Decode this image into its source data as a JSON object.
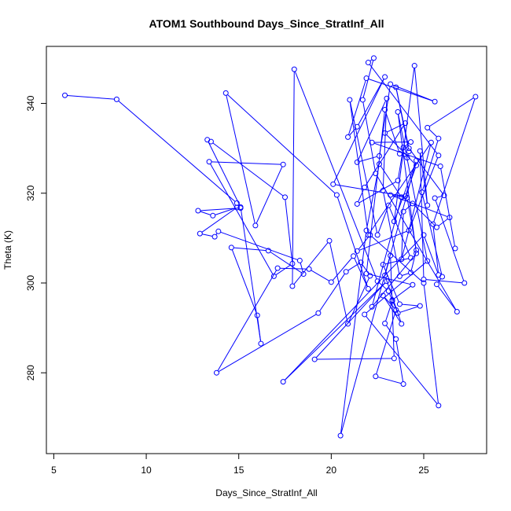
{
  "chart_data": {
    "type": "line",
    "title": "ATOM1 Southbound Days_Since_StratInf_All",
    "xlabel": "Days_Since_StratInf_All",
    "ylabel": "Theta (K)",
    "xlim": [
      4.6,
      28.4
    ],
    "ylim": [
      262.0,
      352.7
    ],
    "xticks": [
      5,
      10,
      15,
      20,
      25
    ],
    "yticks": [
      280,
      300,
      320,
      340
    ],
    "grid": false,
    "color": "#0000ff",
    "series": [
      {
        "points": [
          [
            5.6,
            341.8
          ],
          [
            8.4,
            340.9
          ],
          [
            14.9,
            317.8
          ],
          [
            15.1,
            316.7
          ],
          [
            12.8,
            316.1
          ],
          [
            13.6,
            315.0
          ],
          [
            14.9,
            316.8
          ],
          [
            12.9,
            311.0
          ],
          [
            13.7,
            310.3
          ],
          [
            13.9,
            311.5
          ],
          [
            18.3,
            305.0
          ],
          [
            18.5,
            302.0
          ],
          [
            16.6,
            307.2
          ],
          [
            14.6,
            307.9
          ],
          [
            16.0,
            292.8
          ],
          [
            16.2,
            286.5
          ],
          [
            15.1,
            316.9
          ],
          [
            13.3,
            331.9
          ],
          [
            13.5,
            331.5
          ],
          [
            17.5,
            319.1
          ],
          [
            17.9,
            304.3
          ],
          [
            16.9,
            301.5
          ],
          [
            13.4,
            327.0
          ],
          [
            17.4,
            326.4
          ],
          [
            15.9,
            312.8
          ],
          [
            14.3,
            342.3
          ],
          [
            20.3,
            319.6
          ],
          [
            22.0,
            298.7
          ],
          [
            21.2,
            306.0
          ],
          [
            20.0,
            300.2
          ],
          [
            18.8,
            303.1
          ],
          [
            17.1,
            303.3
          ],
          [
            13.8,
            280.0
          ],
          [
            19.3,
            293.3
          ],
          [
            20.8,
            302.5
          ],
          [
            21.6,
            304.6
          ],
          [
            22.1,
            301.6
          ],
          [
            20.9,
            290.9
          ],
          [
            19.9,
            309.4
          ],
          [
            17.9,
            299.3
          ],
          [
            18.0,
            347.6
          ],
          [
            22.5,
            300.4
          ],
          [
            23.1,
            298.2
          ],
          [
            23.3,
            296.0
          ],
          [
            22.9,
            291.0
          ],
          [
            23.5,
            287.5
          ],
          [
            23.9,
            277.5
          ],
          [
            22.4,
            279.2
          ],
          [
            23.5,
            294.0
          ],
          [
            22.8,
            297.2
          ],
          [
            23.8,
            290.9
          ],
          [
            22.9,
            301.7
          ],
          [
            23.2,
            306.1
          ],
          [
            23.4,
            283.2
          ],
          [
            19.1,
            283.0
          ],
          [
            23.0,
            300.4
          ],
          [
            17.4,
            278.0
          ],
          [
            25.0,
            310.7
          ],
          [
            25.8,
            301.8
          ],
          [
            25.5,
            313.1
          ],
          [
            27.8,
            341.5
          ],
          [
            25.2,
            334.6
          ],
          [
            25.8,
            332.2
          ],
          [
            24.9,
            320.2
          ],
          [
            26.0,
            301.4
          ],
          [
            25.7,
            299.7
          ],
          [
            26.8,
            293.6
          ],
          [
            22.4,
            324.4
          ],
          [
            21.7,
            340.8
          ],
          [
            22.3,
            350.1
          ],
          [
            22.0,
            349.1
          ],
          [
            25.8,
            328.4
          ],
          [
            24.2,
            311.7
          ],
          [
            21.4,
            307.1
          ],
          [
            22.1,
            310.7
          ],
          [
            25.0,
            300.0
          ],
          [
            25.8,
            272.7
          ],
          [
            21.8,
            293.0
          ],
          [
            25.2,
            304.9
          ],
          [
            23.6,
            338.1
          ],
          [
            24.6,
            306.6
          ],
          [
            22.2,
            294.7
          ],
          [
            23.8,
            319.1
          ],
          [
            22.6,
            326.5
          ],
          [
            21.9,
            311.7
          ],
          [
            20.5,
            266.0
          ],
          [
            24.6,
            327.3
          ],
          [
            23.4,
            313.7
          ],
          [
            24.5,
            348.4
          ],
          [
            25.2,
            317.3
          ],
          [
            24.8,
            329.4
          ],
          [
            25.0,
            300.8
          ],
          [
            27.2,
            300.0
          ],
          [
            25.6,
            318.9
          ],
          [
            26.1,
            319.5
          ],
          [
            24.2,
            330.0
          ],
          [
            23.5,
            343.6
          ],
          [
            24.2,
            329.3
          ],
          [
            24.1,
            327.9
          ],
          [
            23.7,
            328.8
          ],
          [
            22.9,
            338.6
          ],
          [
            21.9,
            302.1
          ],
          [
            24.4,
            299.6
          ],
          [
            23.3,
            296.2
          ],
          [
            23.6,
            293.3
          ],
          [
            24.8,
            294.9
          ],
          [
            23.7,
            295.3
          ],
          [
            22.8,
            304.1
          ],
          [
            24.3,
            305.6
          ],
          [
            23.1,
            317.3
          ],
          [
            22.5,
            310.7
          ],
          [
            21.0,
            340.8
          ],
          [
            22.0,
            310.7
          ],
          [
            25.4,
            331.3
          ],
          [
            23.8,
            305.3
          ],
          [
            23.9,
            315.9
          ],
          [
            24.4,
            317.7
          ],
          [
            25.7,
            312.4
          ],
          [
            26.4,
            314.6
          ],
          [
            23.2,
            319.6
          ],
          [
            24.1,
            319.0
          ],
          [
            24.6,
            307.3
          ],
          [
            24.3,
            302.3
          ],
          [
            23.7,
            301.5
          ],
          [
            22.8,
            320.6
          ],
          [
            23.0,
            341.1
          ],
          [
            21.4,
            326.9
          ],
          [
            22.6,
            328.3
          ],
          [
            23.2,
            344.3
          ],
          [
            25.6,
            340.4
          ],
          [
            21.9,
            345.6
          ],
          [
            20.9,
            332.5
          ],
          [
            21.4,
            334.8
          ],
          [
            22.9,
            345.9
          ],
          [
            20.1,
            322.0
          ],
          [
            24.0,
            319.3
          ],
          [
            24.6,
            326.2
          ],
          [
            22.9,
            333.4
          ],
          [
            24.0,
            335.6
          ],
          [
            21.8,
            321.3
          ],
          [
            21.4,
            317.6
          ],
          [
            23.6,
            322.8
          ],
          [
            23.9,
            330.2
          ],
          [
            24.3,
            331.4
          ],
          [
            22.2,
            331.3
          ],
          [
            25.9,
            326.0
          ],
          [
            26.7,
            307.7
          ]
        ]
      }
    ]
  }
}
